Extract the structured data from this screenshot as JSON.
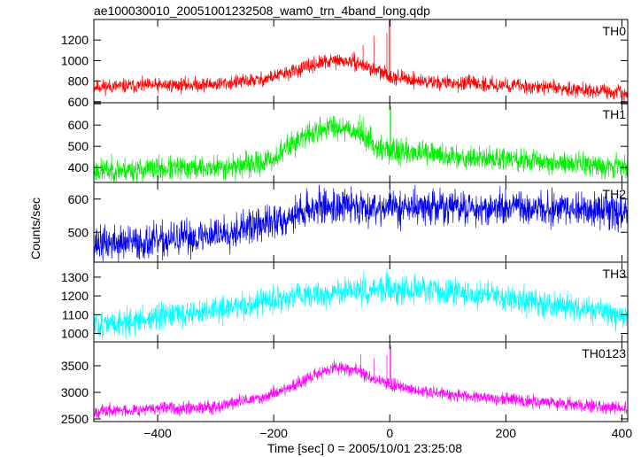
{
  "chart_data": {
    "type": "line",
    "title": "ae100030010_20051001232508_wam0_trn_4band_long.qdp",
    "xlabel": "Time [sec] 0 = 2005/10/01 23:25:08",
    "ylabel": "Counts/sec",
    "xlim": [
      -510,
      410
    ],
    "x_ticks": [
      -400,
      -200,
      0,
      200,
      400
    ],
    "x_tick_labels": [
      "−400",
      "−200",
      "0",
      "200",
      "400"
    ],
    "grid": false,
    "panels": [
      {
        "name": "TH0",
        "color": "#ff0000",
        "ylim": [
          590,
          1400
        ],
        "yticks": [
          600,
          800,
          1000,
          1200
        ],
        "noise": 35,
        "seed": 11,
        "profile": [
          [
            -510,
            745
          ],
          [
            -300,
            770
          ],
          [
            -220,
            815
          ],
          [
            -160,
            905
          ],
          [
            -120,
            975
          ],
          [
            -95,
            1000
          ],
          [
            -60,
            985
          ],
          [
            -30,
            920
          ],
          [
            0,
            850
          ],
          [
            60,
            795
          ],
          [
            200,
            760
          ],
          [
            320,
            725
          ],
          [
            390,
            685
          ],
          [
            410,
            670
          ]
        ],
        "spikes": [
          [
            -46,
            1150
          ],
          [
            -27,
            1240
          ],
          [
            -5,
            1270
          ],
          [
            -1,
            1390
          ],
          [
            1,
            1400
          ]
        ]
      },
      {
        "name": "TH1",
        "color": "#00ee00",
        "ylim": [
          330,
          705
        ],
        "yticks": [
          400,
          500,
          600,
          700
        ],
        "noise": 28,
        "seed": 23,
        "profile": [
          [
            -510,
            385
          ],
          [
            -300,
            400
          ],
          [
            -230,
            415
          ],
          [
            -200,
            440
          ],
          [
            -170,
            510
          ],
          [
            -130,
            570
          ],
          [
            -100,
            595
          ],
          [
            -70,
            585
          ],
          [
            -40,
            540
          ],
          [
            -20,
            495
          ],
          [
            0,
            480
          ],
          [
            100,
            455
          ],
          [
            250,
            430
          ],
          [
            410,
            405
          ]
        ],
        "spikes": [
          [
            -52,
            650
          ],
          [
            -45,
            640
          ],
          [
            0,
            705
          ],
          [
            2,
            690
          ]
        ]
      },
      {
        "name": "TH2",
        "color": "#0000ee",
        "ylim": [
          410,
          650
        ],
        "yticks": [
          500,
          600
        ],
        "noise": 26,
        "seed": 37,
        "profile": [
          [
            -510,
            465
          ],
          [
            -400,
            470
          ],
          [
            -300,
            495
          ],
          [
            -200,
            530
          ],
          [
            -130,
            575
          ],
          [
            -80,
            580
          ],
          [
            0,
            575
          ],
          [
            100,
            575
          ],
          [
            250,
            570
          ],
          [
            410,
            565
          ]
        ],
        "spikes": [
          [
            0,
            645
          ]
        ]
      },
      {
        "name": "TH3",
        "color": "#00ffff",
        "ylim": [
          955,
          1380
        ],
        "yticks": [
          1000,
          1100,
          1200,
          1300
        ],
        "noise": 35,
        "seed": 51,
        "profile": [
          [
            -510,
            1040
          ],
          [
            -420,
            1075
          ],
          [
            -300,
            1125
          ],
          [
            -200,
            1175
          ],
          [
            -100,
            1215
          ],
          [
            0,
            1235
          ],
          [
            100,
            1225
          ],
          [
            200,
            1190
          ],
          [
            300,
            1145
          ],
          [
            410,
            1090
          ]
        ],
        "spikes": [
          [
            -45,
            1335
          ],
          [
            -5,
            1350
          ]
        ]
      },
      {
        "name": "TH0123",
        "color": "#ff00ff",
        "ylim": [
          2450,
          3950
        ],
        "yticks": [
          2500,
          3000,
          3500
        ],
        "noise": 60,
        "seed": 67,
        "profile": [
          [
            -510,
            2640
          ],
          [
            -300,
            2740
          ],
          [
            -220,
            2900
          ],
          [
            -160,
            3150
          ],
          [
            -120,
            3370
          ],
          [
            -95,
            3470
          ],
          [
            -60,
            3430
          ],
          [
            -30,
            3250
          ],
          [
            0,
            3150
          ],
          [
            60,
            3000
          ],
          [
            200,
            2880
          ],
          [
            320,
            2760
          ],
          [
            410,
            2700
          ]
        ],
        "spikes": [
          [
            -50,
            3720
          ],
          [
            -27,
            3640
          ],
          [
            -5,
            3700
          ],
          [
            0,
            3920
          ],
          [
            2,
            3880
          ]
        ]
      }
    ]
  }
}
